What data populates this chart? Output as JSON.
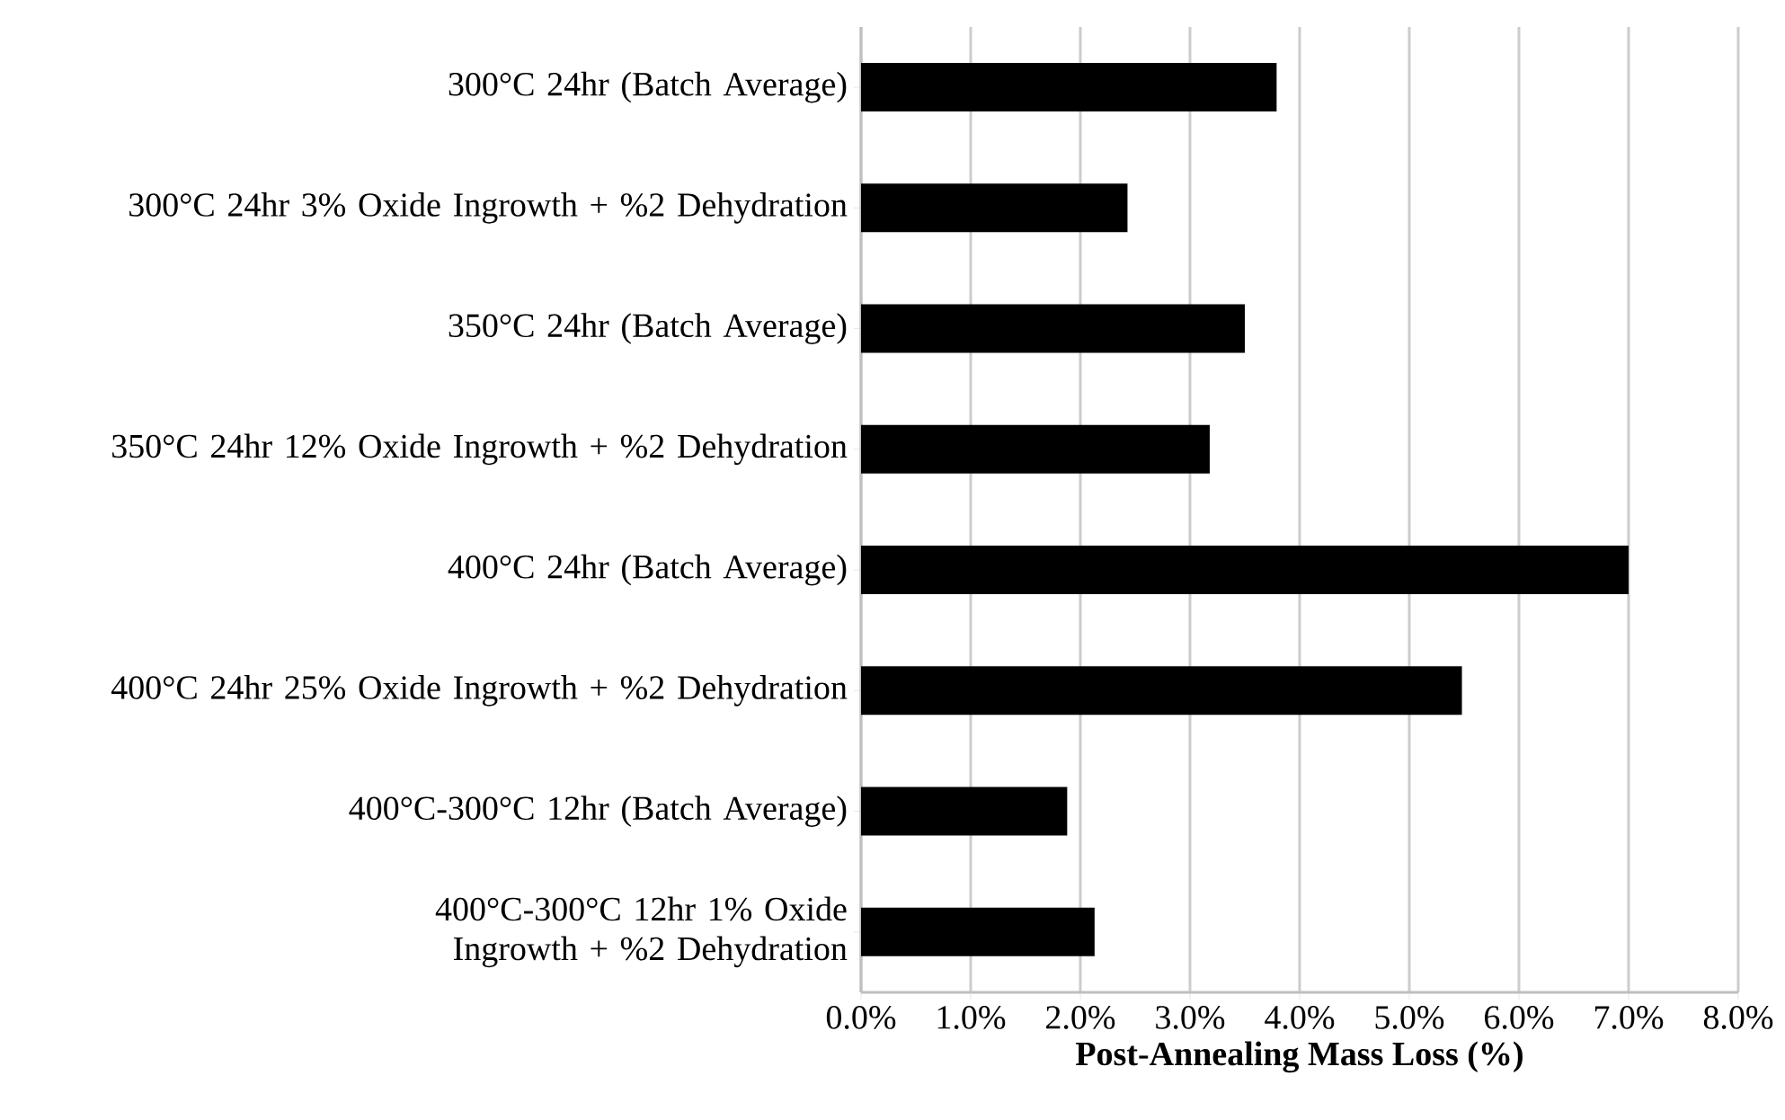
{
  "chart_data": {
    "type": "bar",
    "orientation": "horizontal",
    "xlabel": "Post-Annealing Mass Loss (%)",
    "categories": [
      "300°C 24hr (Batch Average)",
      "300°C 24hr 3% Oxide Ingrowth + %2 Dehydration",
      "350°C 24hr (Batch Average)",
      "350°C 24hr 12% Oxide Ingrowth + %2 Dehydration",
      "400°C 24hr (Batch Average)",
      "400°C 24hr 25% Oxide Ingrowth + %2 Dehydration",
      "400°C-300°C 12hr (Batch Average)",
      "400°C-300°C 12hr 1% Oxide Ingrowth + %2 Dehydration"
    ],
    "values": [
      3.79,
      2.43,
      3.5,
      3.18,
      7.0,
      5.48,
      1.88,
      2.13
    ],
    "color": "#000000",
    "xlim": [
      0,
      8
    ],
    "xticks": [
      {
        "value": 0,
        "label": "0.0%"
      },
      {
        "value": 1,
        "label": "1.0%"
      },
      {
        "value": 2,
        "label": "2.0%"
      },
      {
        "value": 3,
        "label": "3.0%"
      },
      {
        "value": 4,
        "label": "4.0%"
      },
      {
        "value": 5,
        "label": "5.0%"
      },
      {
        "value": 6,
        "label": "6.0%"
      },
      {
        "value": 7,
        "label": "7.0%"
      },
      {
        "value": 8,
        "label": "8.0%"
      }
    ],
    "grid": "x"
  }
}
